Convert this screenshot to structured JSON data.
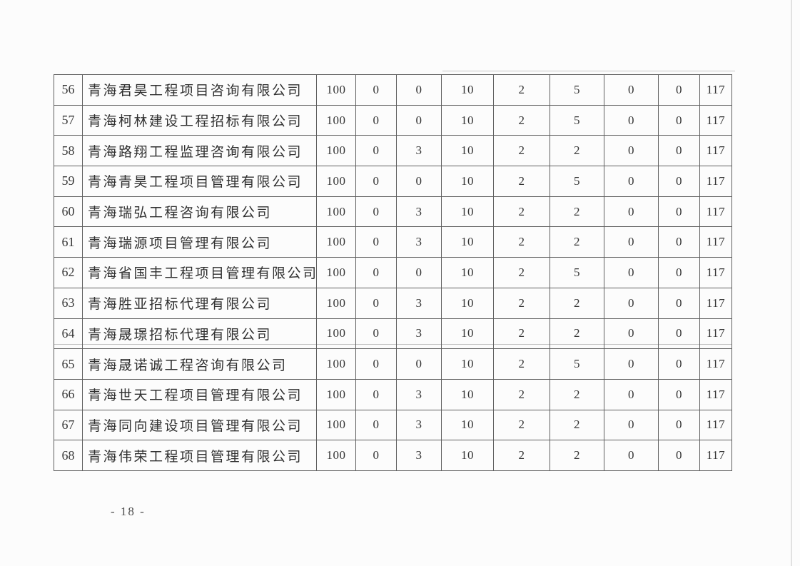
{
  "document": {
    "page_number": "- 18 -"
  },
  "table": {
    "rows": [
      {
        "no": "56",
        "company": "青海君昊工程项目咨询有限公司",
        "scores": [
          "100",
          "0",
          "0",
          "10",
          "2",
          "5",
          "0",
          "0",
          "117"
        ]
      },
      {
        "no": "57",
        "company": "青海柯林建设工程招标有限公司",
        "scores": [
          "100",
          "0",
          "0",
          "10",
          "2",
          "5",
          "0",
          "0",
          "117"
        ]
      },
      {
        "no": "58",
        "company": "青海路翔工程监理咨询有限公司",
        "scores": [
          "100",
          "0",
          "3",
          "10",
          "2",
          "2",
          "0",
          "0",
          "117"
        ]
      },
      {
        "no": "59",
        "company": "青海青昊工程项目管理有限公司",
        "scores": [
          "100",
          "0",
          "0",
          "10",
          "2",
          "5",
          "0",
          "0",
          "117"
        ]
      },
      {
        "no": "60",
        "company": "青海瑞弘工程咨询有限公司",
        "scores": [
          "100",
          "0",
          "3",
          "10",
          "2",
          "2",
          "0",
          "0",
          "117"
        ]
      },
      {
        "no": "61",
        "company": "青海瑞源项目管理有限公司",
        "scores": [
          "100",
          "0",
          "3",
          "10",
          "2",
          "2",
          "0",
          "0",
          "117"
        ]
      },
      {
        "no": "62",
        "company": "青海省国丰工程项目管理有限公司",
        "scores": [
          "100",
          "0",
          "0",
          "10",
          "2",
          "5",
          "0",
          "0",
          "117"
        ]
      },
      {
        "no": "63",
        "company": "青海胜亚招标代理有限公司",
        "scores": [
          "100",
          "0",
          "3",
          "10",
          "2",
          "2",
          "0",
          "0",
          "117"
        ]
      },
      {
        "no": "64",
        "company": "青海晟璟招标代理有限公司",
        "scores": [
          "100",
          "0",
          "3",
          "10",
          "2",
          "2",
          "0",
          "0",
          "117"
        ]
      },
      {
        "no": "65",
        "company": "青海晟诺诚工程咨询有限公司",
        "scores": [
          "100",
          "0",
          "0",
          "10",
          "2",
          "5",
          "0",
          "0",
          "117"
        ]
      },
      {
        "no": "66",
        "company": "青海世天工程项目管理有限公司",
        "scores": [
          "100",
          "0",
          "3",
          "10",
          "2",
          "2",
          "0",
          "0",
          "117"
        ]
      },
      {
        "no": "67",
        "company": "青海同向建设项目管理有限公司",
        "scores": [
          "100",
          "0",
          "3",
          "10",
          "2",
          "2",
          "0",
          "0",
          "117"
        ]
      },
      {
        "no": "68",
        "company": "青海伟荣工程项目管理有限公司",
        "scores": [
          "100",
          "0",
          "3",
          "10",
          "2",
          "2",
          "0",
          "0",
          "117"
        ]
      }
    ]
  }
}
